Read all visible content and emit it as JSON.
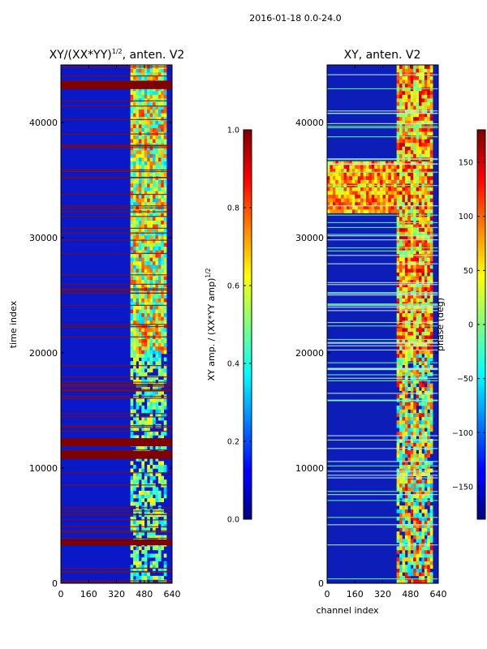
{
  "figure": {
    "suptitle": "2016-01-18 0.0-24.0",
    "xlabel": "channel index",
    "ylabel": "time index"
  },
  "colors": {
    "jet_low": "#00007f",
    "jet_mid": "#7fff7f",
    "jet_high": "#7f0000",
    "frame": "#000000",
    "background": "#ffffff"
  },
  "chart_data": [
    {
      "type": "heatmap",
      "title_prefix": "XY/(XX*YY)",
      "title_exponent": "1/2",
      "title_suffix": ", anten. V2",
      "xlabel": "",
      "ylabel": "time index",
      "x_range": [
        0,
        640
      ],
      "y_range": [
        0,
        45000
      ],
      "x_ticks": [
        0,
        160,
        320,
        480,
        640
      ],
      "y_ticks": [
        0,
        10000,
        20000,
        30000,
        40000
      ],
      "x_tick_labels": [
        "0",
        "160",
        "320",
        "480",
        "640"
      ],
      "y_tick_labels": [
        "0",
        "10000",
        "20000",
        "30000",
        "40000"
      ],
      "colormap": "jet",
      "colorbar": {
        "label_prefix": "XY amp. / (XX*YY amp)",
        "label_exponent": "1/2",
        "range": [
          0.0,
          1.0
        ],
        "ticks": [
          0.0,
          0.2,
          0.4,
          0.6,
          0.8,
          1.0
        ],
        "tick_labels": [
          "0.0",
          "0.2",
          "0.4",
          "0.6",
          "0.8",
          "1.0"
        ]
      },
      "active_channel_band": [
        400,
        600
      ],
      "dense_band": [
        20000,
        45000
      ],
      "saturated_bands": [
        [
          3300,
          3800
        ],
        [
          10800,
          11500
        ],
        [
          11900,
          12600
        ],
        [
          42900,
          43600
        ]
      ]
    },
    {
      "type": "heatmap",
      "title": "XY, anten. V2",
      "xlabel": "channel index",
      "ylabel": "",
      "x_range": [
        0,
        640
      ],
      "y_range": [
        0,
        45000
      ],
      "x_ticks": [
        0,
        160,
        320,
        480,
        640
      ],
      "y_ticks": [
        0,
        10000,
        20000,
        30000,
        40000
      ],
      "x_tick_labels": [
        "0",
        "160",
        "320",
        "480",
        "640"
      ],
      "y_tick_labels": [
        "0",
        "10000",
        "20000",
        "30000",
        "40000"
      ],
      "colormap": "jet",
      "colorbar": {
        "label": "phase (deg)",
        "range": [
          -180,
          180
        ],
        "ticks": [
          -150,
          -100,
          -50,
          0,
          50,
          100,
          150
        ],
        "tick_labels": [
          "−150",
          "−100",
          "−50",
          "0",
          "50",
          "100",
          "150"
        ]
      },
      "active_channel_band": [
        400,
        600
      ],
      "dense_band": [
        20000,
        45000
      ],
      "warm_band": [
        32000,
        36500
      ]
    }
  ]
}
